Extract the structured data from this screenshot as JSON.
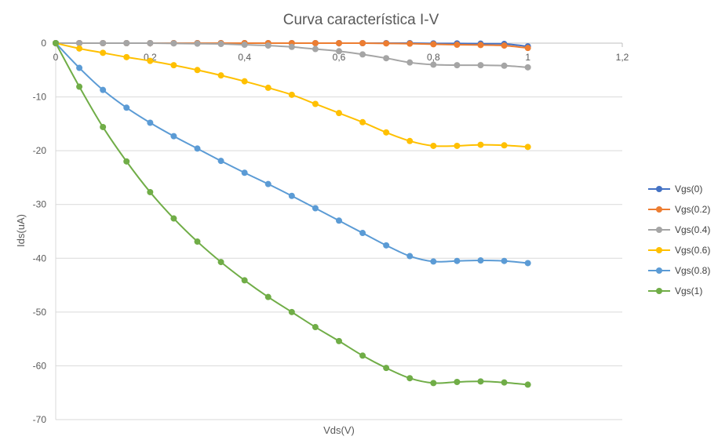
{
  "chart_data": {
    "type": "line",
    "title": "Curva característica I-V",
    "xlabel": "Vds(V)",
    "ylabel": "Ids(uA)",
    "xlim": [
      0,
      1.2
    ],
    "ylim": [
      -70,
      0
    ],
    "x_ticks": [
      0,
      0.2,
      0.4,
      0.6,
      0.8,
      1,
      1.2
    ],
    "x_tick_labels": [
      "0",
      "0,2",
      "0,4",
      "0,6",
      "0,8",
      "1",
      "1,2"
    ],
    "y_ticks": [
      0,
      -10,
      -20,
      -30,
      -40,
      -50,
      -60,
      -70
    ],
    "y_tick_labels": [
      "0",
      "-10",
      "-20",
      "-30",
      "-40",
      "-50",
      "-60",
      "-70"
    ],
    "grid": true,
    "legend_position": "right",
    "x": [
      0,
      0.05,
      0.1,
      0.15,
      0.2,
      0.25,
      0.3,
      0.35,
      0.4,
      0.45,
      0.5,
      0.55,
      0.6,
      0.65,
      0.7,
      0.75,
      0.8,
      0.85,
      0.9,
      0.95,
      1.0
    ],
    "series": [
      {
        "name": "Vgs(0)",
        "color": "#4472C4",
        "values": [
          0,
          0,
          0,
          0,
          0,
          0,
          0,
          0,
          0,
          0,
          0,
          0,
          0,
          0,
          0,
          0,
          -0.05,
          -0.05,
          -0.1,
          -0.15,
          -0.6
        ]
      },
      {
        "name": "Vgs(0.2)",
        "color": "#ED7D31",
        "values": [
          0,
          0,
          0,
          0,
          0,
          0,
          0,
          0,
          0,
          0,
          0,
          0,
          0,
          0,
          -0.05,
          -0.1,
          -0.2,
          -0.3,
          -0.35,
          -0.45,
          -0.9
        ]
      },
      {
        "name": "Vgs(0.4)",
        "color": "#A5A5A5",
        "values": [
          0,
          0,
          0,
          0,
          0,
          -0.05,
          -0.1,
          -0.15,
          -0.3,
          -0.45,
          -0.7,
          -1.1,
          -1.5,
          -2.1,
          -2.8,
          -3.6,
          -4.0,
          -4.1,
          -4.1,
          -4.2,
          -4.5
        ]
      },
      {
        "name": "Vgs(0.6)",
        "color": "#FFC000",
        "values": [
          0,
          -1.0,
          -1.8,
          -2.6,
          -3.3,
          -4.1,
          -5.0,
          -6.0,
          -7.1,
          -8.3,
          -9.6,
          -11.3,
          -13.0,
          -14.7,
          -16.6,
          -18.2,
          -19.1,
          -19.1,
          -18.9,
          -19.0,
          -19.3
        ]
      },
      {
        "name": "Vgs(0.8)",
        "color": "#5B9BD5",
        "values": [
          0,
          -4.6,
          -8.7,
          -12.0,
          -14.8,
          -17.3,
          -19.6,
          -21.9,
          -24.1,
          -26.2,
          -28.4,
          -30.7,
          -33.0,
          -35.3,
          -37.6,
          -39.6,
          -40.6,
          -40.5,
          -40.4,
          -40.5,
          -40.9
        ]
      },
      {
        "name": "Vgs(1)",
        "color": "#70AD47",
        "values": [
          0,
          -8.1,
          -15.6,
          -22.0,
          -27.7,
          -32.6,
          -36.9,
          -40.7,
          -44.1,
          -47.2,
          -50.0,
          -52.8,
          -55.4,
          -58.1,
          -60.4,
          -62.3,
          -63.2,
          -63.0,
          -62.9,
          -63.1,
          -63.5
        ]
      }
    ]
  }
}
